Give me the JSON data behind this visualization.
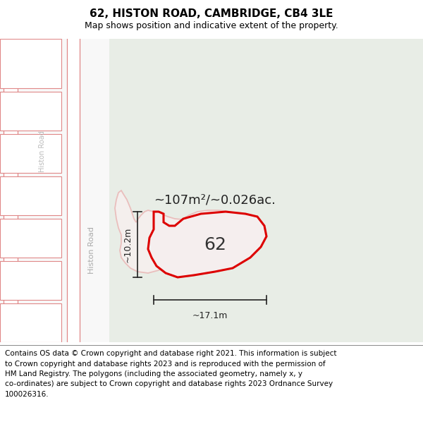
{
  "title": "62, HISTON ROAD, CAMBRIDGE, CB4 3LE",
  "subtitle": "Map shows position and indicative extent of the property.",
  "title_fontsize": 11,
  "subtitle_fontsize": 9,
  "footer_text": "Contains OS data © Crown copyright and database right 2021. This information is subject\nto Crown copyright and database rights 2023 and is reproduced with the permission of\nHM Land Registry. The polygons (including the associated geometry, namely x, y\nco-ordinates) are subject to Crown copyright and database rights 2023 Ordnance Survey\n100026316.",
  "footer_fontsize": 7.5,
  "bg_green_color": "#e8ede6",
  "bg_white_color": "#f8f8f8",
  "road_color": "#ffffff",
  "building_fill": "#ffffff",
  "building_edge_color": "#e08888",
  "red_poly_color": "#dd0000",
  "red_poly_fill": "#f5eeee",
  "pink_outline_color": "#e8aaaa",
  "pink_outline_fill": "#faf0f0",
  "dim_line_color": "#222222",
  "label_color": "#222222",
  "histon_road_color_1": "#bbbbbb",
  "histon_road_color_2": "#cccccc",
  "area_label": "~107m²/~0.026ac.",
  "plot_number": "62",
  "dim_vertical": "~10.2m",
  "dim_horizontal": "~17.1m",
  "area_label_fontsize": 13,
  "plot_number_fontsize": 18,
  "dim_fontsize": 9
}
